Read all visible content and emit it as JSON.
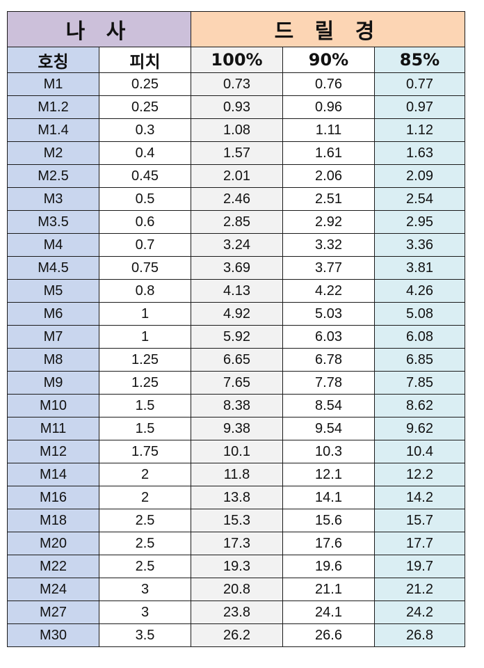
{
  "colors": {
    "thread_group_bg": "#ccc0da",
    "drill_group_bg": "#fcd5b4",
    "thread_col_bg": "#c9d6ee",
    "pitch_col_bg": "#ffffff",
    "d100_col_bg": "#f2f2f2",
    "d90_col_bg": "#ffffff",
    "d85_col_bg": "#daeef3",
    "border": "#1a1a1a"
  },
  "table": {
    "group_headers": {
      "thread": "나 사",
      "drill": "드 릴 경"
    },
    "column_headers": [
      "호칭",
      "피치",
      "100%",
      "90%",
      "85%"
    ],
    "rows": [
      [
        "M1",
        "0.25",
        "0.73",
        "0.76",
        "0.77"
      ],
      [
        "M1.2",
        "0.25",
        "0.93",
        "0.96",
        "0.97"
      ],
      [
        "M1.4",
        "0.3",
        "1.08",
        "1.11",
        "1.12"
      ],
      [
        "M2",
        "0.4",
        "1.57",
        "1.61",
        "1.63"
      ],
      [
        "M2.5",
        "0.45",
        "2.01",
        "2.06",
        "2.09"
      ],
      [
        "M3",
        "0.5",
        "2.46",
        "2.51",
        "2.54"
      ],
      [
        "M3.5",
        "0.6",
        "2.85",
        "2.92",
        "2.95"
      ],
      [
        "M4",
        "0.7",
        "3.24",
        "3.32",
        "3.36"
      ],
      [
        "M4.5",
        "0.75",
        "3.69",
        "3.77",
        "3.81"
      ],
      [
        "M5",
        "0.8",
        "4.13",
        "4.22",
        "4.26"
      ],
      [
        "M6",
        "1",
        "4.92",
        "5.03",
        "5.08"
      ],
      [
        "M7",
        "1",
        "5.92",
        "6.03",
        "6.08"
      ],
      [
        "M8",
        "1.25",
        "6.65",
        "6.78",
        "6.85"
      ],
      [
        "M9",
        "1.25",
        "7.65",
        "7.78",
        "7.85"
      ],
      [
        "M10",
        "1.5",
        "8.38",
        "8.54",
        "8.62"
      ],
      [
        "M11",
        "1.5",
        "9.38",
        "9.54",
        "9.62"
      ],
      [
        "M12",
        "1.75",
        "10.1",
        "10.3",
        "10.4"
      ],
      [
        "M14",
        "2",
        "11.8",
        "12.1",
        "12.2"
      ],
      [
        "M16",
        "2",
        "13.8",
        "14.1",
        "14.2"
      ],
      [
        "M18",
        "2.5",
        "15.3",
        "15.6",
        "15.7"
      ],
      [
        "M20",
        "2.5",
        "17.3",
        "17.6",
        "17.7"
      ],
      [
        "M22",
        "2.5",
        "19.3",
        "19.6",
        "19.7"
      ],
      [
        "M24",
        "3",
        "20.8",
        "21.1",
        "21.2"
      ],
      [
        "M27",
        "3",
        "23.8",
        "24.1",
        "24.2"
      ],
      [
        "M30",
        "3.5",
        "26.2",
        "26.6",
        "26.8"
      ]
    ]
  }
}
